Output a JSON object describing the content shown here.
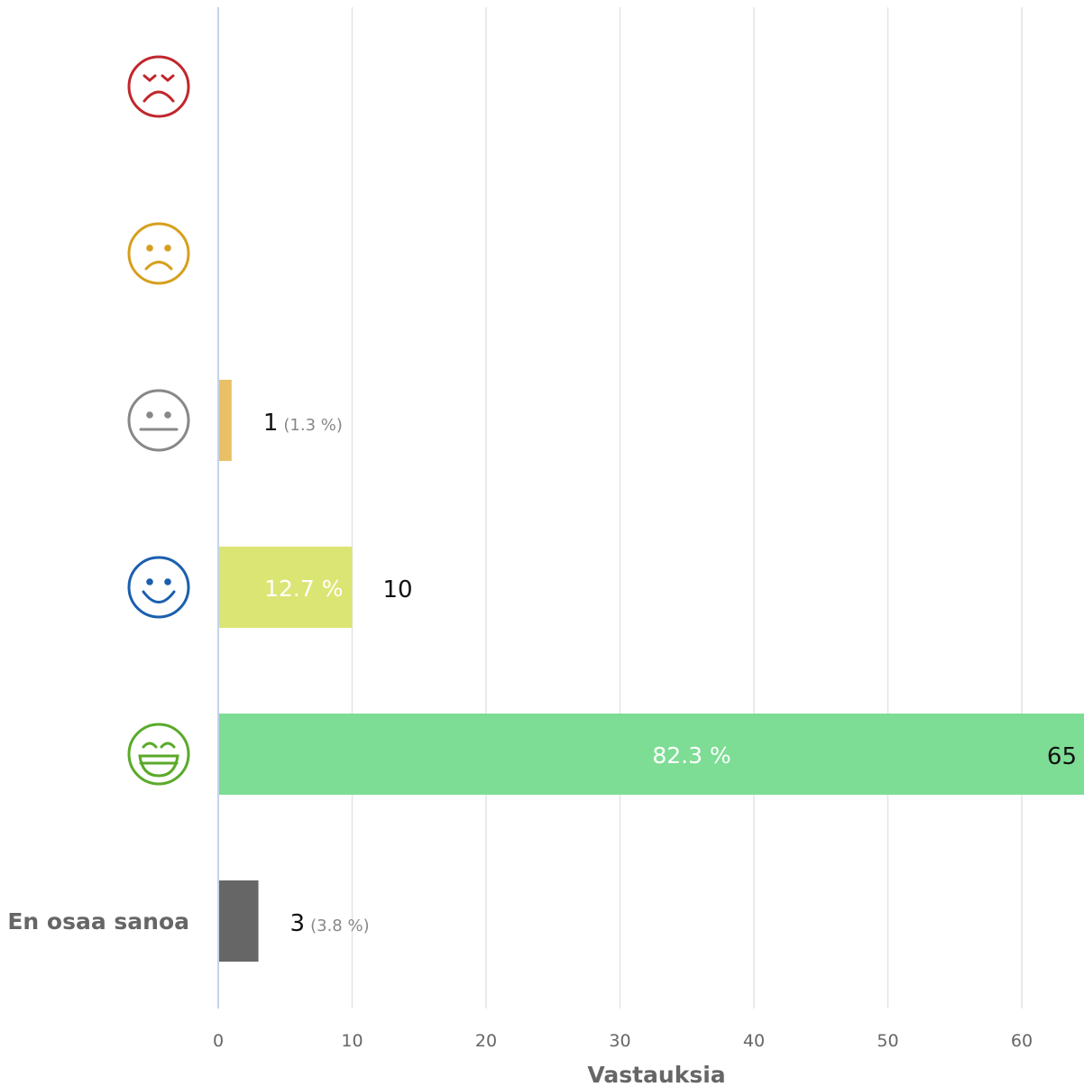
{
  "chart_data": {
    "type": "bar",
    "orientation": "horizontal",
    "xlabel": "Vastauksia",
    "xlim": [
      0,
      64.5
    ],
    "xticks": [
      "0",
      "10",
      "20",
      "30",
      "40",
      "50",
      "60"
    ],
    "grid": true,
    "categories": [
      {
        "icon": "very-unhappy-face-icon",
        "label": "",
        "color": "#c0272d",
        "value": 0,
        "percent_label": ""
      },
      {
        "icon": "unhappy-face-icon",
        "label": "",
        "color": "#d79f1e",
        "value": 0,
        "percent_label": ""
      },
      {
        "icon": "neutral-face-icon",
        "label": "",
        "color": "#888888",
        "bar_color": "#e9c067",
        "value": 1,
        "value_label": "1",
        "percent_label": "(1.3 %)"
      },
      {
        "icon": "happy-face-icon",
        "label": "",
        "color": "#1b5fae",
        "bar_color": "#dbe574",
        "value": 10,
        "value_label": "10",
        "percent_label": "12.7 %"
      },
      {
        "icon": "very-happy-face-icon",
        "label": "",
        "color": "#5aaa2a",
        "bar_color": "#7ddd94",
        "value": 65,
        "value_label": "65",
        "percent_label": "82.3 %"
      },
      {
        "icon": "",
        "label": "En osaa sanoa",
        "color": "#666666",
        "bar_color": "#666666",
        "value": 3,
        "value_label": "3",
        "percent_label": "(3.8 %)"
      }
    ]
  }
}
